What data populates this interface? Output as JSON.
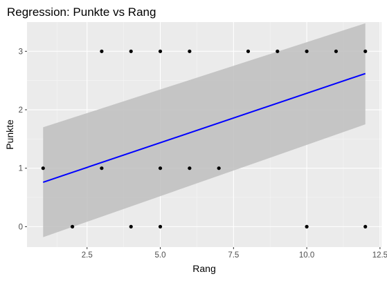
{
  "chart_data": {
    "type": "scatter",
    "title": "Regression: Punkte vs Rang",
    "xlabel": "Rang",
    "ylabel": "Punkte",
    "xlim": [
      0.45,
      12.55
    ],
    "ylim": [
      -0.35,
      3.5
    ],
    "x_ticks": [
      2.5,
      5.0,
      7.5,
      10.0,
      12.5
    ],
    "x_tick_labels": [
      "2.5",
      "5.0",
      "7.5",
      "10.0",
      "12.5"
    ],
    "y_ticks": [
      0,
      1,
      2,
      3
    ],
    "y_tick_labels": [
      "0",
      "1",
      "2",
      "3"
    ],
    "grid": true,
    "points": [
      {
        "x": 1,
        "y": 1
      },
      {
        "x": 2,
        "y": 0
      },
      {
        "x": 3,
        "y": 3
      },
      {
        "x": 3,
        "y": 1
      },
      {
        "x": 4,
        "y": 3
      },
      {
        "x": 4,
        "y": 0
      },
      {
        "x": 5,
        "y": 3
      },
      {
        "x": 5,
        "y": 1
      },
      {
        "x": 5,
        "y": 0
      },
      {
        "x": 6,
        "y": 3
      },
      {
        "x": 6,
        "y": 1
      },
      {
        "x": 7,
        "y": 1
      },
      {
        "x": 8,
        "y": 3
      },
      {
        "x": 9,
        "y": 3
      },
      {
        "x": 10,
        "y": 3
      },
      {
        "x": 10,
        "y": 0
      },
      {
        "x": 11,
        "y": 3
      },
      {
        "x": 12,
        "y": 3
      },
      {
        "x": 12,
        "y": 0
      }
    ],
    "regression": {
      "x": [
        1,
        12
      ],
      "y": [
        0.76,
        2.62
      ],
      "ci_lower": [
        -0.18,
        1.75
      ],
      "ci_upper": [
        1.7,
        3.48
      ]
    },
    "colors": {
      "panel_background": "#ebebeb",
      "grid_major": "#ffffff",
      "grid_minor": "#f5f5f5",
      "points": "#000000",
      "regression_line": "#0000ff",
      "ci_band": "#bebebe",
      "tick_text": "#4d4d4d",
      "title_text": "#000000"
    }
  }
}
